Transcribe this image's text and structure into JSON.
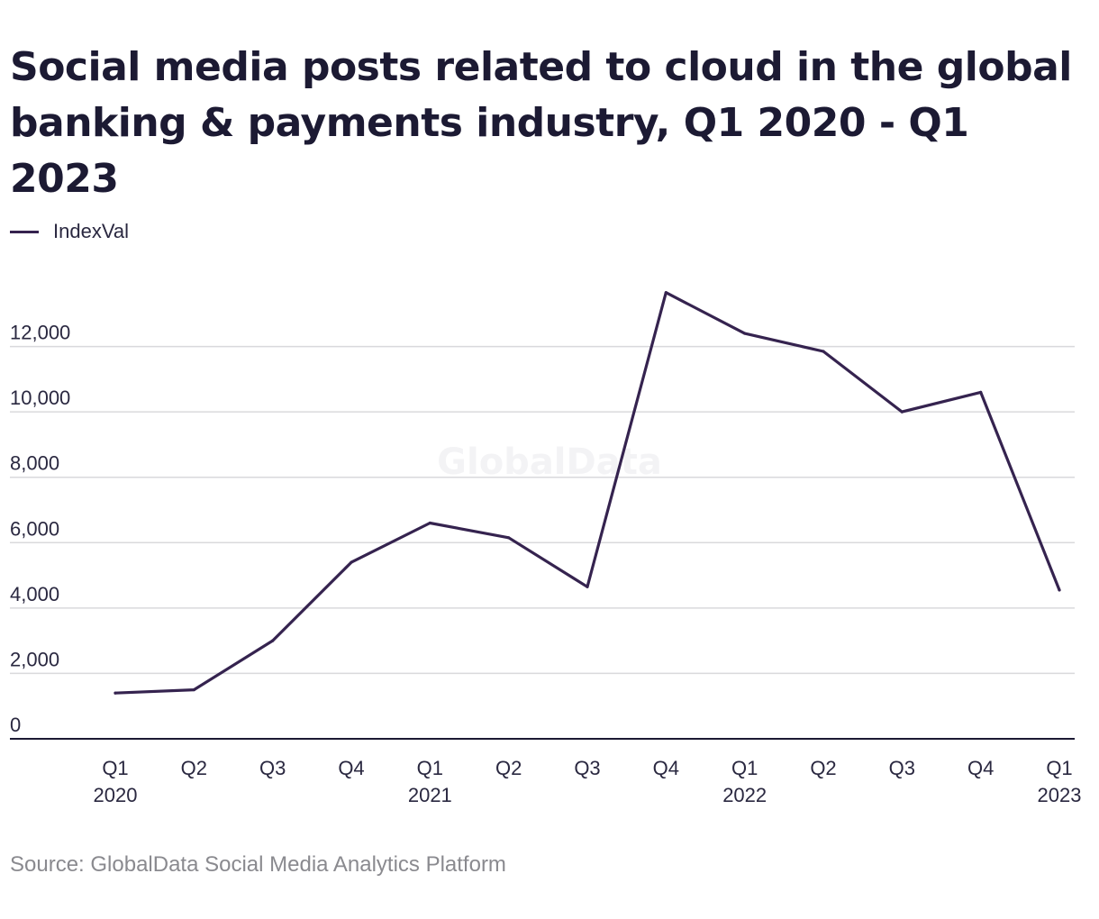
{
  "title": "Social media posts related to cloud in the global banking & payments industry, Q1 2020 - Q1 2023",
  "legend_label": "IndexVal",
  "watermark": "GlobalData",
  "source": "Source: GlobalData Social Media Analytics Platform",
  "colors": {
    "line": "#35234f",
    "grid": "#d9d9dc",
    "axis": "#1c1a33",
    "text": "#2a2840"
  },
  "chart_data": {
    "type": "line",
    "title": "Social media posts related to cloud in the global banking & payments industry, Q1 2020 - Q1 2023",
    "categories": [
      "Q1 2020",
      "Q2 2020",
      "Q3 2020",
      "Q4 2020",
      "Q1 2021",
      "Q2 2021",
      "Q3 2021",
      "Q4 2021",
      "Q1 2022",
      "Q2 2022",
      "Q3 2022",
      "Q4 2022",
      "Q1 2023"
    ],
    "x_tick_labels": [
      {
        "q": "Q1",
        "y": "2020"
      },
      {
        "q": "Q2",
        "y": ""
      },
      {
        "q": "Q3",
        "y": ""
      },
      {
        "q": "Q4",
        "y": ""
      },
      {
        "q": "Q1",
        "y": "2021"
      },
      {
        "q": "Q2",
        "y": ""
      },
      {
        "q": "Q3",
        "y": ""
      },
      {
        "q": "Q4",
        "y": ""
      },
      {
        "q": "Q1",
        "y": "2022"
      },
      {
        "q": "Q2",
        "y": ""
      },
      {
        "q": "Q3",
        "y": ""
      },
      {
        "q": "Q4",
        "y": ""
      },
      {
        "q": "Q1",
        "y": "2023"
      }
    ],
    "series": [
      {
        "name": "IndexVal",
        "values": [
          1400,
          1500,
          3000,
          5400,
          6600,
          6150,
          4650,
          13650,
          12400,
          11850,
          10000,
          10600,
          4550
        ]
      }
    ],
    "ylim": [
      0,
      14000
    ],
    "yticks": [
      0,
      2000,
      4000,
      6000,
      8000,
      10000,
      12000
    ],
    "ytick_labels": [
      "0",
      "2,000",
      "4,000",
      "6,000",
      "8,000",
      "10,000",
      "12,000"
    ],
    "xlabel": "",
    "ylabel": "",
    "grid": true,
    "legend": "top-left"
  }
}
